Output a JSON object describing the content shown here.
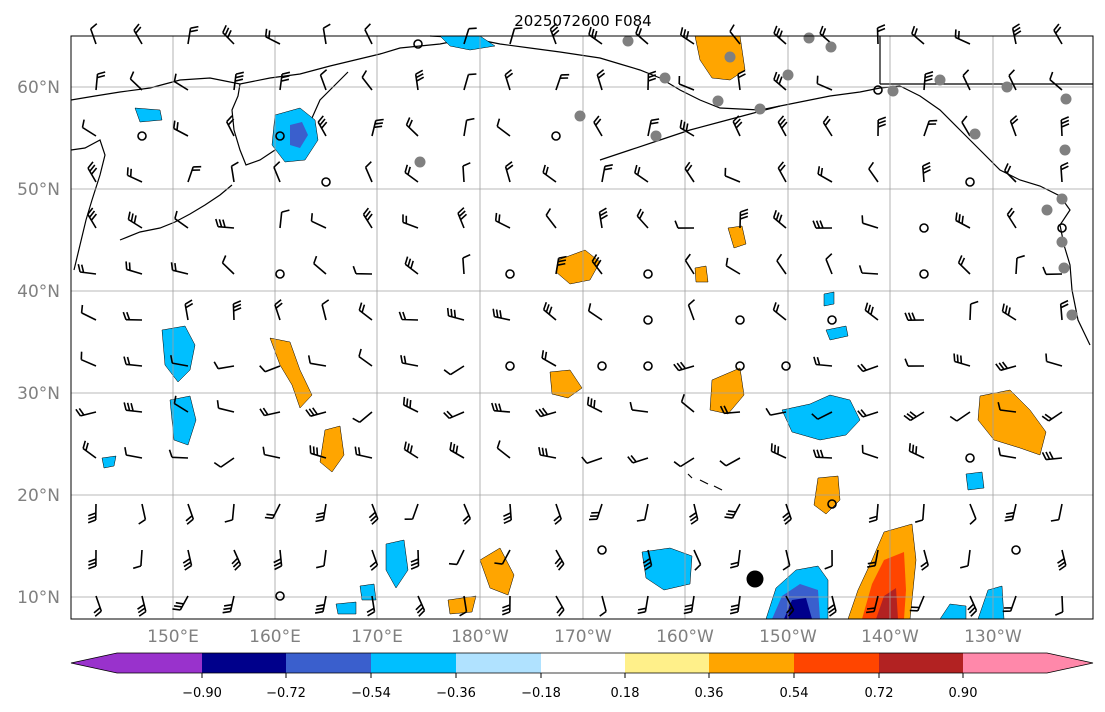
{
  "title": "2025072600 F084",
  "map": {
    "lon_ticks": [
      "150°E",
      "160°E",
      "170°E",
      "180°W",
      "170°W",
      "160°W",
      "150°W",
      "140°W",
      "130°W"
    ],
    "lat_ticks": [
      "60°N",
      "50°N",
      "40°N",
      "30°N",
      "20°N",
      "10°N"
    ],
    "grid": true,
    "region": "North Pacific"
  },
  "colorbar": {
    "colors": [
      "#9932cc",
      "#00008b",
      "#3a5fcd",
      "#00bfff",
      "#b0e2ff",
      "#ffffff",
      "#fff08a",
      "#ffa500",
      "#ff4500",
      "#b22222",
      "#ff88aa",
      "#ff88aa"
    ],
    "labels": [
      "−0.90",
      "−0.72",
      "−0.54",
      "−0.36",
      "−0.18",
      "0.18",
      "0.36",
      "0.54",
      "0.72",
      "0.90"
    ]
  },
  "markers": {
    "large_dot": "black-dot",
    "stations": "gray-dot"
  }
}
